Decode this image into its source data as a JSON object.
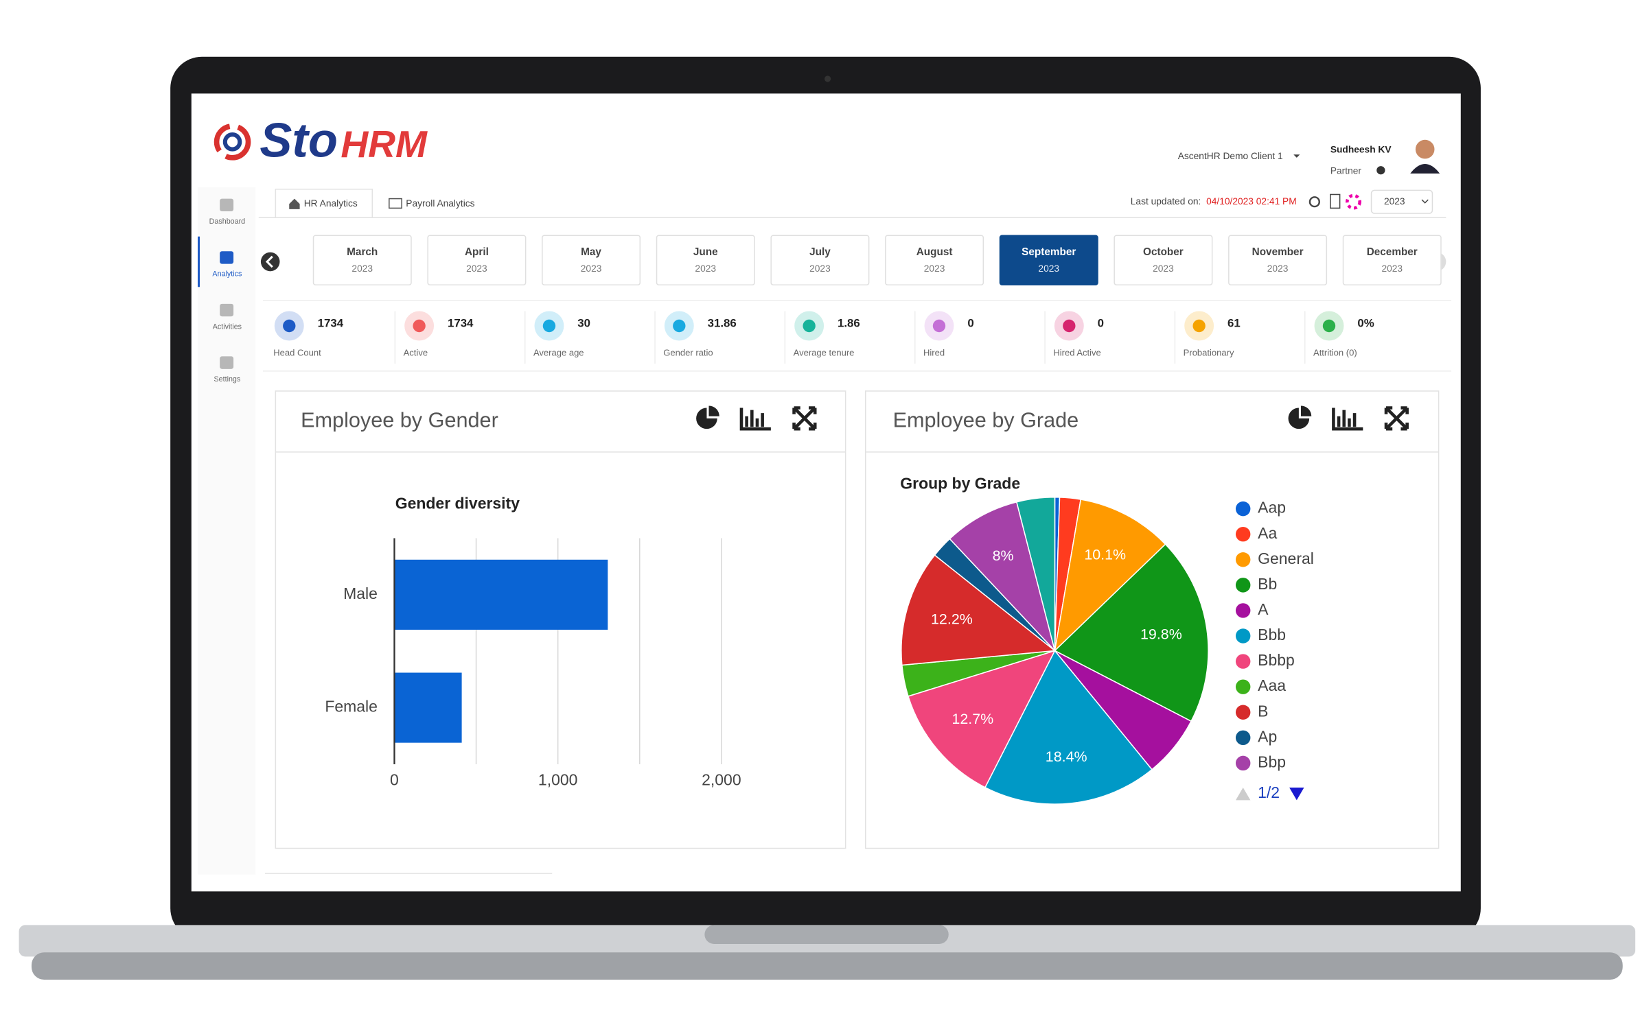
{
  "header": {
    "logo_main": "Sto",
    "logo_accent": "HRM",
    "client": "AscentHR Demo Client 1",
    "user_name": "Sudheesh KV",
    "user_role": "Partner"
  },
  "sidebar": [
    "Dashboard",
    "Analytics",
    "Activities",
    "Settings"
  ],
  "active_sidebar": 1,
  "tabs": [
    "HR Analytics",
    "Payroll Analytics"
  ],
  "last_updated_label": "Last updated on:",
  "last_updated": "04/10/2023 02:41 PM",
  "year": "2023",
  "months": [
    {
      "month": "March",
      "year": "2023"
    },
    {
      "month": "April",
      "year": "2023"
    },
    {
      "month": "May",
      "year": "2023"
    },
    {
      "month": "June",
      "year": "2023"
    },
    {
      "month": "July",
      "year": "2023"
    },
    {
      "month": "August",
      "year": "2023"
    },
    {
      "month": "September",
      "year": "2023"
    },
    {
      "month": "October",
      "year": "2023"
    },
    {
      "month": "November",
      "year": "2023"
    },
    {
      "month": "December",
      "year": "2023"
    }
  ],
  "active_month": 6,
  "kpis": [
    {
      "value": "1734",
      "label": "Head Count",
      "color": "#1e5bc6"
    },
    {
      "value": "1734",
      "label": "Active",
      "color": "#f05a5a"
    },
    {
      "value": "30",
      "label": "Average age",
      "color": "#18a9e0"
    },
    {
      "value": "31.86",
      "label": "Gender ratio",
      "color": "#18a9e0"
    },
    {
      "value": "1.86",
      "label": "Average tenure",
      "color": "#16b39a"
    },
    {
      "value": "0",
      "label": "Hired",
      "color": "#c46fd6"
    },
    {
      "value": "0",
      "label": "Hired Active",
      "color": "#d6246e"
    },
    {
      "value": "61",
      "label": "Probationary",
      "color": "#f5a300"
    },
    {
      "value": "0%",
      "label": "Attrition (0)",
      "color": "#2bb04a"
    }
  ],
  "gender_panel": {
    "title": "Employee by Gender",
    "chart": {
      "type": "bar",
      "orientation": "horizontal",
      "title": "Gender diversity",
      "categories": [
        "Male",
        "Female"
      ],
      "values": [
        1305,
        412
      ],
      "color": "#0a64d4",
      "xlim": [
        0,
        2000
      ],
      "xticks": [
        0,
        {
          "value": 1000,
          "label": "1,000"
        },
        {
          "value": 2000,
          "label": "2,000"
        }
      ],
      "xminor": [
        500,
        1500
      ],
      "grid": true
    }
  },
  "grade_panel": {
    "title": "Employee by Grade",
    "chart": {
      "type": "pie",
      "title": "Group by Grade",
      "categories": [
        "Aap",
        "Aa",
        "General",
        "Bb",
        "A",
        "Bbb",
        "Bbbp",
        "Aaa",
        "B",
        "Ap",
        "Bbp",
        null
      ],
      "values": [
        0.5,
        2.2,
        10.1,
        19.8,
        6.5,
        18.4,
        12.7,
        3.3,
        12.2,
        2.3,
        8,
        4
      ],
      "value_labels": [
        null,
        null,
        "10.1%",
        "19.8%",
        null,
        "18.4%",
        "12.7%",
        null,
        "12.2%",
        null,
        "8%",
        null
      ],
      "colors": [
        "#0b62d6",
        "#ff3b1f",
        "#ff9a00",
        "#109618",
        "#a5109e",
        "#0099c6",
        "#f0457c",
        "#3cb21a",
        "#d62b2b",
        "#0d5a8c",
        "#a541a8",
        "#12a89a"
      ]
    },
    "legend_page": "1/2"
  }
}
